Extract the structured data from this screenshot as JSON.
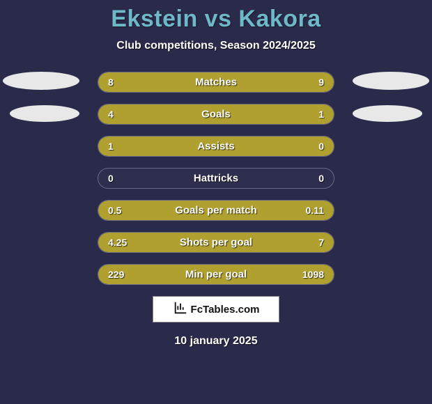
{
  "title": "Ekstein vs Kakora",
  "subtitle": "Club competitions, Season 2024/2025",
  "date": "10 january 2025",
  "logo_text": "FcTables.com",
  "colors": {
    "background": "#2a2a4a",
    "title": "#6eb8c8",
    "bar_fill": "#b0a02f",
    "bar_border": "#6a6a85",
    "bar_bg": "#2e2e4f",
    "text": "#ffffff",
    "ellipse": "#e8e8e8"
  },
  "stats": [
    {
      "label": "Matches",
      "left_val": "8",
      "right_val": "9",
      "left_pct": 47,
      "right_pct": 53
    },
    {
      "label": "Goals",
      "left_val": "4",
      "right_val": "1",
      "left_pct": 80,
      "right_pct": 20
    },
    {
      "label": "Assists",
      "left_val": "1",
      "right_val": "0",
      "left_pct": 100,
      "right_pct": 0
    },
    {
      "label": "Hattricks",
      "left_val": "0",
      "right_val": "0",
      "left_pct": 0,
      "right_pct": 0
    },
    {
      "label": "Goals per match",
      "left_val": "0.5",
      "right_val": "0.11",
      "left_pct": 82,
      "right_pct": 18
    },
    {
      "label": "Shots per goal",
      "left_val": "4.25",
      "right_val": "7",
      "left_pct": 38,
      "right_pct": 62
    },
    {
      "label": "Min per goal",
      "left_val": "229",
      "right_val": "1098",
      "left_pct": 17,
      "right_pct": 83
    }
  ]
}
